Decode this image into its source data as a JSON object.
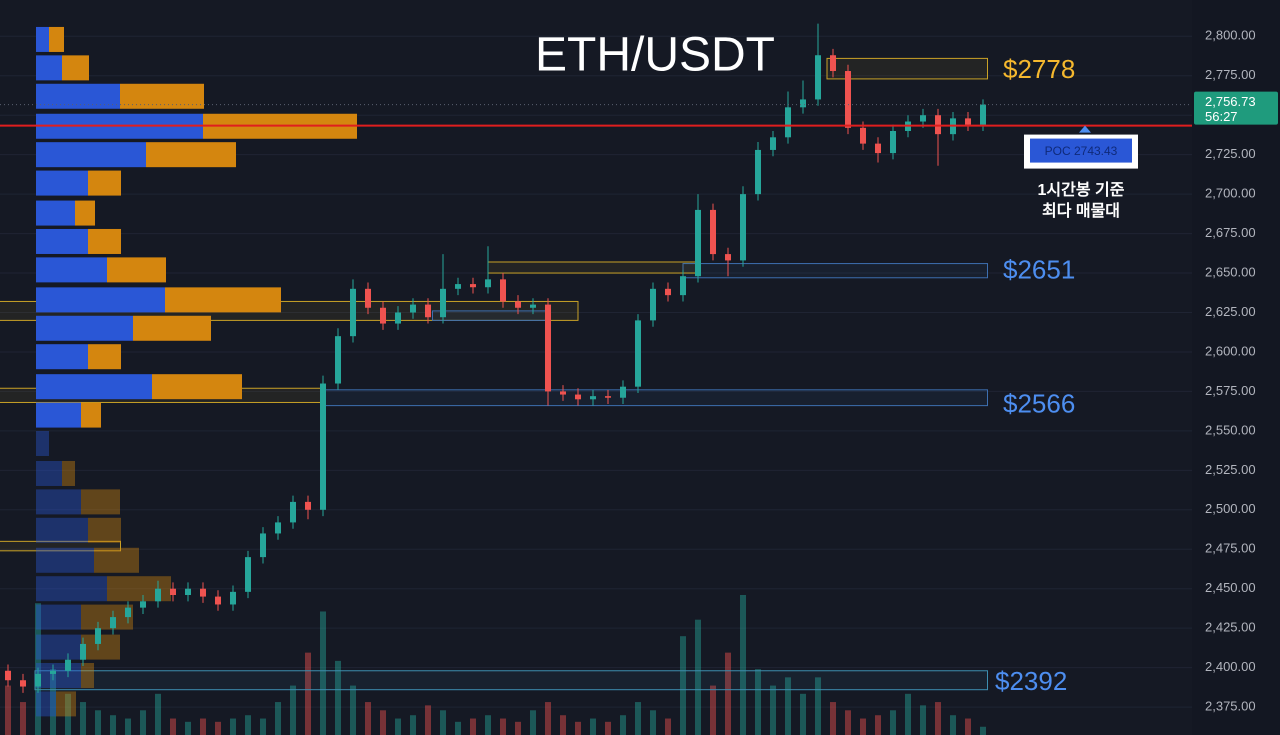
{
  "chart_data": {
    "type": "candlestick",
    "title": "ETH/USDT",
    "ylim": [
      2357.3,
      2823
    ],
    "yticks": [
      {
        "value": 2375,
        "label": "2,375.00"
      },
      {
        "value": 2400,
        "label": "2,400.00"
      },
      {
        "value": 2425,
        "label": "2,425.00"
      },
      {
        "value": 2450,
        "label": "2,450.00"
      },
      {
        "value": 2475,
        "label": "2,475.00"
      },
      {
        "value": 2500,
        "label": "2,500.00"
      },
      {
        "value": 2525,
        "label": "2,525.00"
      },
      {
        "value": 2550,
        "label": "2,550.00"
      },
      {
        "value": 2575,
        "label": "2,575.00"
      },
      {
        "value": 2600,
        "label": "2,600.00"
      },
      {
        "value": 2625,
        "label": "2,625.00"
      },
      {
        "value": 2650,
        "label": "2,650.00"
      },
      {
        "value": 2675,
        "label": "2,675.00"
      },
      {
        "value": 2700,
        "label": "2,700.00"
      },
      {
        "value": 2725,
        "label": "2,725.00"
      },
      {
        "value": 2750,
        "label": "2,750.00"
      },
      {
        "value": 2775,
        "label": "2,775.00"
      },
      {
        "value": 2800,
        "label": "2,800.00"
      }
    ],
    "grid": true,
    "up_color": "#26a69a",
    "down_color": "#ef5350",
    "open": [
      2398,
      2392,
      2388,
      2396,
      2398,
      2405,
      2415,
      2425,
      2432,
      2438,
      2442,
      2450,
      2446,
      2450,
      2445,
      2440,
      2448,
      2470,
      2485,
      2492,
      2505,
      2500,
      2580,
      2610,
      2640,
      2628,
      2618,
      2625,
      2630,
      2622,
      2640,
      2643,
      2641,
      2646,
      2632,
      2628,
      2630,
      2575,
      2573,
      2570,
      2572,
      2571,
      2578,
      2620,
      2640,
      2636,
      2648,
      2690,
      2662,
      2658,
      2700,
      2728,
      2736,
      2755,
      2760,
      2788,
      2778,
      2742,
      2732,
      2726,
      2740,
      2746,
      2750,
      2738,
      2748,
      2744
    ],
    "high": [
      2402,
      2396,
      2400,
      2402,
      2409,
      2419,
      2429,
      2436,
      2442,
      2446,
      2455,
      2454,
      2454,
      2454,
      2449,
      2452,
      2474,
      2489,
      2496,
      2509,
      2509,
      2585,
      2615,
      2646,
      2644,
      2632,
      2629,
      2634,
      2634,
      2662,
      2647,
      2647,
      2667,
      2650,
      2636,
      2634,
      2634,
      2579,
      2577,
      2576,
      2576,
      2582,
      2624,
      2644,
      2644,
      2652,
      2700,
      2694,
      2666,
      2705,
      2733,
      2740,
      2765,
      2772,
      2808,
      2792,
      2782,
      2746,
      2736,
      2744,
      2750,
      2754,
      2754,
      2752,
      2752,
      2760
    ],
    "low": [
      2388,
      2384,
      2384,
      2392,
      2394,
      2401,
      2411,
      2421,
      2428,
      2434,
      2438,
      2442,
      2442,
      2441,
      2436,
      2436,
      2444,
      2466,
      2481,
      2488,
      2494,
      2496,
      2576,
      2606,
      2624,
      2614,
      2614,
      2621,
      2618,
      2618,
      2636,
      2637,
      2637,
      2628,
      2624,
      2624,
      2566,
      2569,
      2566,
      2566,
      2567,
      2567,
      2574,
      2616,
      2632,
      2632,
      2644,
      2658,
      2648,
      2654,
      2696,
      2724,
      2732,
      2751,
      2756,
      2774,
      2738,
      2728,
      2720,
      2722,
      2736,
      2742,
      2718,
      2734,
      2740,
      2740
    ],
    "close": [
      2392,
      2388,
      2396,
      2398,
      2405,
      2415,
      2425,
      2432,
      2438,
      2442,
      2450,
      2446,
      2450,
      2445,
      2440,
      2448,
      2470,
      2485,
      2492,
      2505,
      2500,
      2580,
      2610,
      2640,
      2628,
      2618,
      2625,
      2630,
      2622,
      2640,
      2643,
      2641,
      2646,
      2632,
      2628,
      2630,
      2575,
      2573,
      2570,
      2572,
      2571,
      2578,
      2620,
      2640,
      2636,
      2648,
      2690,
      2662,
      2658,
      2700,
      2728,
      2736,
      2755,
      2760,
      2788,
      2778,
      2742,
      2732,
      2726,
      2740,
      2746,
      2750,
      2738,
      2748,
      2744,
      2756.73
    ],
    "volume": [
      30,
      20,
      80,
      40,
      25,
      20,
      15,
      12,
      10,
      15,
      25,
      10,
      8,
      10,
      8,
      10,
      12,
      10,
      20,
      30,
      50,
      75,
      45,
      30,
      20,
      15,
      10,
      12,
      18,
      15,
      8,
      10,
      12,
      10,
      8,
      15,
      20,
      12,
      8,
      10,
      8,
      12,
      20,
      15,
      10,
      60,
      70,
      30,
      50,
      85,
      40,
      30,
      35,
      25,
      35,
      20,
      15,
      10,
      12,
      15,
      25,
      18,
      20,
      12,
      10,
      5
    ],
    "volume_profile": {
      "levels": [
        2798,
        2780,
        2762,
        2743,
        2725,
        2707,
        2688,
        2670,
        2652,
        2633,
        2615,
        2597,
        2578,
        2560,
        2542,
        2523,
        2505,
        2487,
        2468,
        2450,
        2432,
        2413,
        2395,
        2377
      ],
      "buy": [
        13,
        26,
        84,
        167,
        110,
        52,
        39,
        52,
        71,
        129,
        97,
        52,
        116,
        45,
        13,
        26,
        45,
        52,
        58,
        71,
        45,
        45,
        45,
        20
      ],
      "sell": [
        15,
        27,
        84,
        154,
        90,
        33,
        20,
        33,
        59,
        116,
        78,
        33,
        90,
        20,
        0,
        13,
        39,
        33,
        45,
        64,
        52,
        39,
        13,
        20
      ],
      "buy_color": "#2a57d6",
      "sell_color": "#d4860f",
      "value_area": [
        2555,
        2810
      ]
    },
    "zones": [
      {
        "low": 2773,
        "high": 2786,
        "from": 54.6,
        "to": 65.3,
        "color": "#c9a227"
      },
      {
        "low": 2647,
        "high": 2656,
        "from": 45,
        "to": 65.3,
        "color": "#3d6fb0"
      },
      {
        "low": 2650,
        "high": 2657,
        "from": 32,
        "to": 46,
        "color": "#c9a227"
      },
      {
        "low": 2620,
        "high": 2632,
        "from": -0.6,
        "to": 38,
        "color": "#c9a227"
      },
      {
        "low": 2620,
        "high": 2626,
        "from": 28.3,
        "to": 36,
        "color": "#3d6fb0"
      },
      {
        "low": 2568,
        "high": 2577,
        "from": -0.6,
        "to": 21,
        "color": "#c9a227"
      },
      {
        "low": 2566,
        "high": 2576,
        "from": 21,
        "to": 65.3,
        "color": "#3d6fb0"
      },
      {
        "low": 2474,
        "high": 2480,
        "from": -0.6,
        "to": 7.5,
        "color": "#c9a227"
      },
      {
        "low": 2386,
        "high": 2398,
        "from": 1.8,
        "to": 65.3,
        "color": "#3d8fb0"
      }
    ],
    "annotations": [
      {
        "text": "$2778",
        "price": 2778,
        "color": "#f5b82e"
      },
      {
        "text": "$2651",
        "price": 2651,
        "color": "#4d8ef0"
      },
      {
        "text": "$2566",
        "price": 2566,
        "color": "#4d8ef0"
      },
      {
        "text": "$2392",
        "price": 2392,
        "color": "#4d8ef0"
      }
    ],
    "poc": {
      "value": 2743.43,
      "label": "POC  2743.43",
      "color": "#e01e1e"
    },
    "poc_note": [
      "1시간봉 기준",
      "최다 매물대"
    ],
    "last_price": {
      "value": 2756.73,
      "label": "2,756.73",
      "countdown": "56:27",
      "color": "#1f9b7d"
    }
  }
}
